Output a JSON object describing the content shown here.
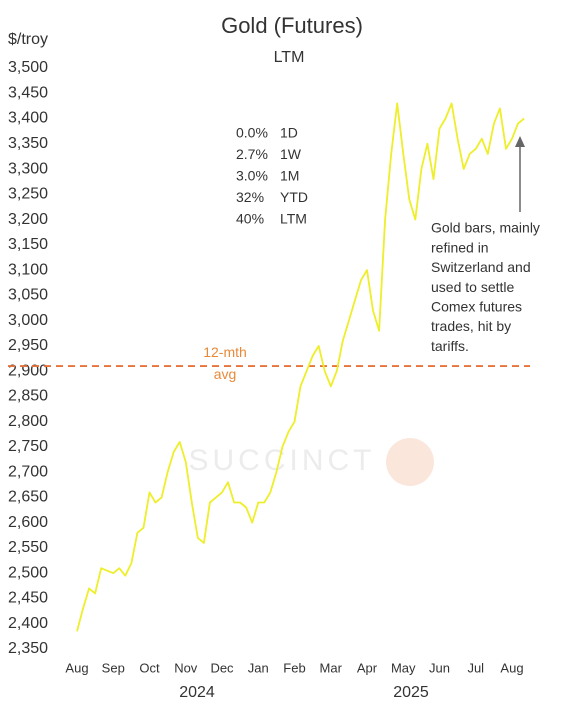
{
  "chart_data": {
    "type": "line",
    "title": "Gold (Futures)",
    "subtitle": "LTM",
    "y_label": "$/troy",
    "watermark": "SUCCINCT",
    "year_labels": [
      "2024",
      "2025"
    ],
    "categories": [
      "Aug",
      null,
      null,
      null,
      null,
      null,
      "Sep",
      null,
      null,
      null,
      null,
      null,
      "Oct",
      null,
      null,
      null,
      null,
      null,
      "Nov",
      null,
      null,
      null,
      null,
      null,
      "Dec",
      null,
      null,
      null,
      null,
      null,
      "Jan",
      null,
      null,
      null,
      null,
      null,
      "Feb",
      null,
      null,
      null,
      null,
      null,
      "Mar",
      null,
      null,
      null,
      null,
      null,
      "Apr",
      null,
      null,
      null,
      null,
      null,
      "May",
      null,
      null,
      null,
      null,
      null,
      "Jun",
      null,
      null,
      null,
      null,
      null,
      "Jul",
      null,
      null,
      null,
      null,
      null,
      "Aug",
      null,
      null
    ],
    "values": [
      2385,
      2430,
      2470,
      2460,
      2510,
      2505,
      2500,
      2510,
      2495,
      2520,
      2580,
      2590,
      2660,
      2640,
      2650,
      2700,
      2740,
      2760,
      2720,
      2640,
      2570,
      2560,
      2640,
      2650,
      2660,
      2680,
      2640,
      2640,
      2630,
      2600,
      2640,
      2640,
      2660,
      2700,
      2750,
      2780,
      2800,
      2870,
      2900,
      2930,
      2950,
      2900,
      2870,
      2900,
      2960,
      3000,
      3040,
      3080,
      3100,
      3020,
      2980,
      3200,
      3330,
      3430,
      3330,
      3240,
      3200,
      3300,
      3350,
      3280,
      3380,
      3400,
      3430,
      3360,
      3300,
      3330,
      3340,
      3360,
      3330,
      3390,
      3420,
      3340,
      3360,
      3390,
      3400
    ],
    "color": "#eeee2a",
    "reference_line": {
      "value": 2910,
      "label": [
        "12-mth",
        "avg"
      ],
      "color": "#e8733a"
    },
    "stats": [
      [
        "0.0%",
        "1D"
      ],
      [
        "2.7%",
        "1W"
      ],
      [
        "3.0%",
        "1M"
      ],
      [
        "32%",
        "YTD"
      ],
      [
        "40%",
        "LTM"
      ]
    ],
    "annotation": [
      "Gold bars, mainly",
      "refined in",
      "Switzerland and",
      "used to settle",
      "Comex futures",
      "trades, hit by",
      "tariffs."
    ],
    "ylim": [
      2350,
      3500
    ],
    "yticks": [
      {
        "value": 2350,
        "label": "2,350"
      },
      {
        "value": 2400,
        "label": "2,400"
      },
      {
        "value": 2450,
        "label": "2,450"
      },
      {
        "value": 2500,
        "label": "2,500"
      },
      {
        "value": 2550,
        "label": "2,550"
      },
      {
        "value": 2600,
        "label": "2,600"
      },
      {
        "value": 2650,
        "label": "2,650"
      },
      {
        "value": 2700,
        "label": "2,700"
      },
      {
        "value": 2750,
        "label": "2,750"
      },
      {
        "value": 2800,
        "label": "2,800"
      },
      {
        "value": 2850,
        "label": "2,850"
      },
      {
        "value": 2900,
        "label": "2,900"
      },
      {
        "value": 2950,
        "label": "2,950"
      },
      {
        "value": 3000,
        "label": "3,000"
      },
      {
        "value": 3050,
        "label": "3,050"
      },
      {
        "value": 3100,
        "label": "3,100"
      },
      {
        "value": 3150,
        "label": "3,150"
      },
      {
        "value": 3200,
        "label": "3,200"
      },
      {
        "value": 3250,
        "label": "3,250"
      },
      {
        "value": 3300,
        "label": "3,300"
      },
      {
        "value": 3350,
        "label": "3,350"
      },
      {
        "value": 3400,
        "label": "3,400"
      },
      {
        "value": 3450,
        "label": "3,450"
      },
      {
        "value": 3500,
        "label": "3,500"
      }
    ],
    "grid": false
  }
}
